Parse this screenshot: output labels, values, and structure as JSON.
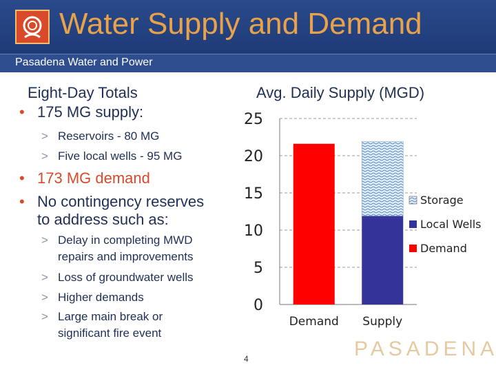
{
  "header": {
    "title": "Water Supply and Demand",
    "subtitle": "Pasadena Water and Power"
  },
  "left": {
    "heading": "Eight-Day Totals",
    "bullet1": "175 MG supply:",
    "sub1": "Reservoirs - 80 MG",
    "sub2": "Five local wells - 95 MG",
    "bullet2": "173 MG demand",
    "bullet3_line1": "No contingency reserves",
    "bullet3_line2": "to address such as:",
    "sub3_line1": "Delay in completing MWD",
    "sub3_line2": "repairs and improvements",
    "sub4": "Loss of groundwater wells",
    "sub5": "Higher demands",
    "sub6_line1": "Large main break or",
    "sub6_line2": "significant fire event",
    "bullet_glyph": "•",
    "sub_glyph": ">"
  },
  "chart_data": {
    "type": "bar",
    "stacked": true,
    "title": "Avg. Daily Supply (MGD)",
    "categories": [
      "Demand",
      "Supply"
    ],
    "series": [
      {
        "name": "Demand",
        "values": [
          21.6,
          0
        ],
        "color": "#ff0000"
      },
      {
        "name": "Local Wells",
        "values": [
          0,
          11.9
        ],
        "color": "#333399"
      },
      {
        "name": "Storage",
        "values": [
          0,
          10.0
        ],
        "color": "#dcecf8"
      }
    ],
    "yticks": [
      "0",
      "5",
      "10",
      "15",
      "20",
      "25"
    ],
    "ylim": [
      0,
      25
    ],
    "legend_order": [
      "Storage",
      "Local Wells",
      "Demand"
    ],
    "grid": "dashed",
    "legend_position": "right"
  },
  "page_number": "4",
  "logo_text": "PASADENA",
  "colors": {
    "header_bg": "#1b3670",
    "title": "#e8a24a",
    "accent_bullet": "#d84a2a",
    "text": "#1f2f55"
  }
}
